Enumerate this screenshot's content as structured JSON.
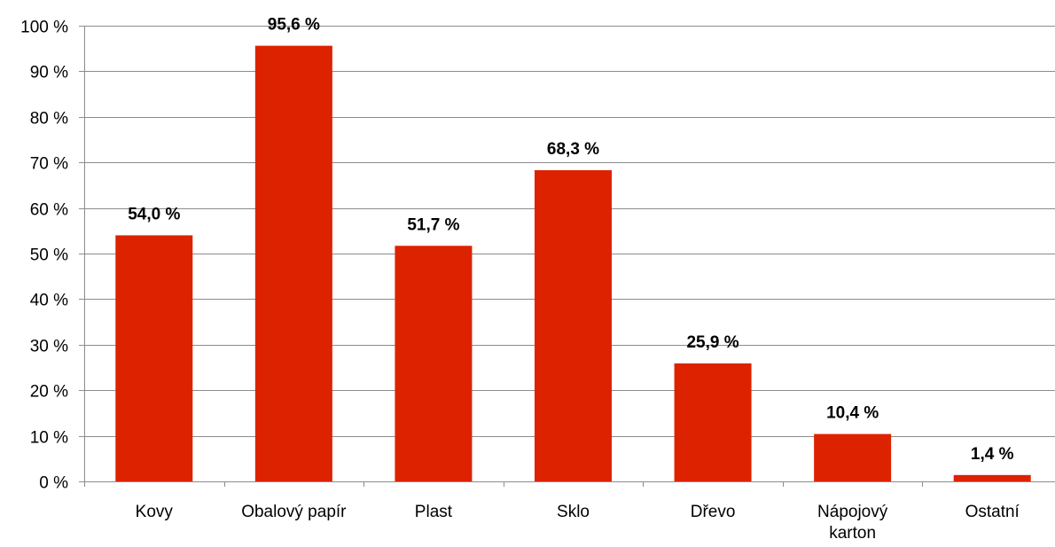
{
  "chart_data": {
    "type": "bar",
    "categories": [
      "Kovy",
      "Obalový papír",
      "Plast",
      "Sklo",
      "Dřevo",
      "Nápojový karton",
      "Ostatní"
    ],
    "category_label_lines": [
      [
        "Kovy"
      ],
      [
        "Obalový papír"
      ],
      [
        "Plast"
      ],
      [
        "Sklo"
      ],
      [
        "Dřevo"
      ],
      [
        "Nápojový",
        "karton"
      ],
      [
        "Ostatní"
      ]
    ],
    "values": [
      54.0,
      95.6,
      51.7,
      68.3,
      25.9,
      10.4,
      1.4
    ],
    "data_labels": [
      "54,0 %",
      "95,6 %",
      "51,7 %",
      "68,3 %",
      "25,9 %",
      "10,4 %",
      "1,4 %"
    ],
    "ylim": [
      0,
      100
    ],
    "y_ticks": [
      0,
      10,
      20,
      30,
      40,
      50,
      60,
      70,
      80,
      90,
      100
    ],
    "y_tick_labels": [
      "0 %",
      "10 %",
      "20 %",
      "30 %",
      "40 %",
      "50 %",
      "60 %",
      "70 %",
      "80 %",
      "90 %",
      "100 %"
    ],
    "grid": true,
    "legend": "none",
    "bar_color": "#dd2200"
  }
}
